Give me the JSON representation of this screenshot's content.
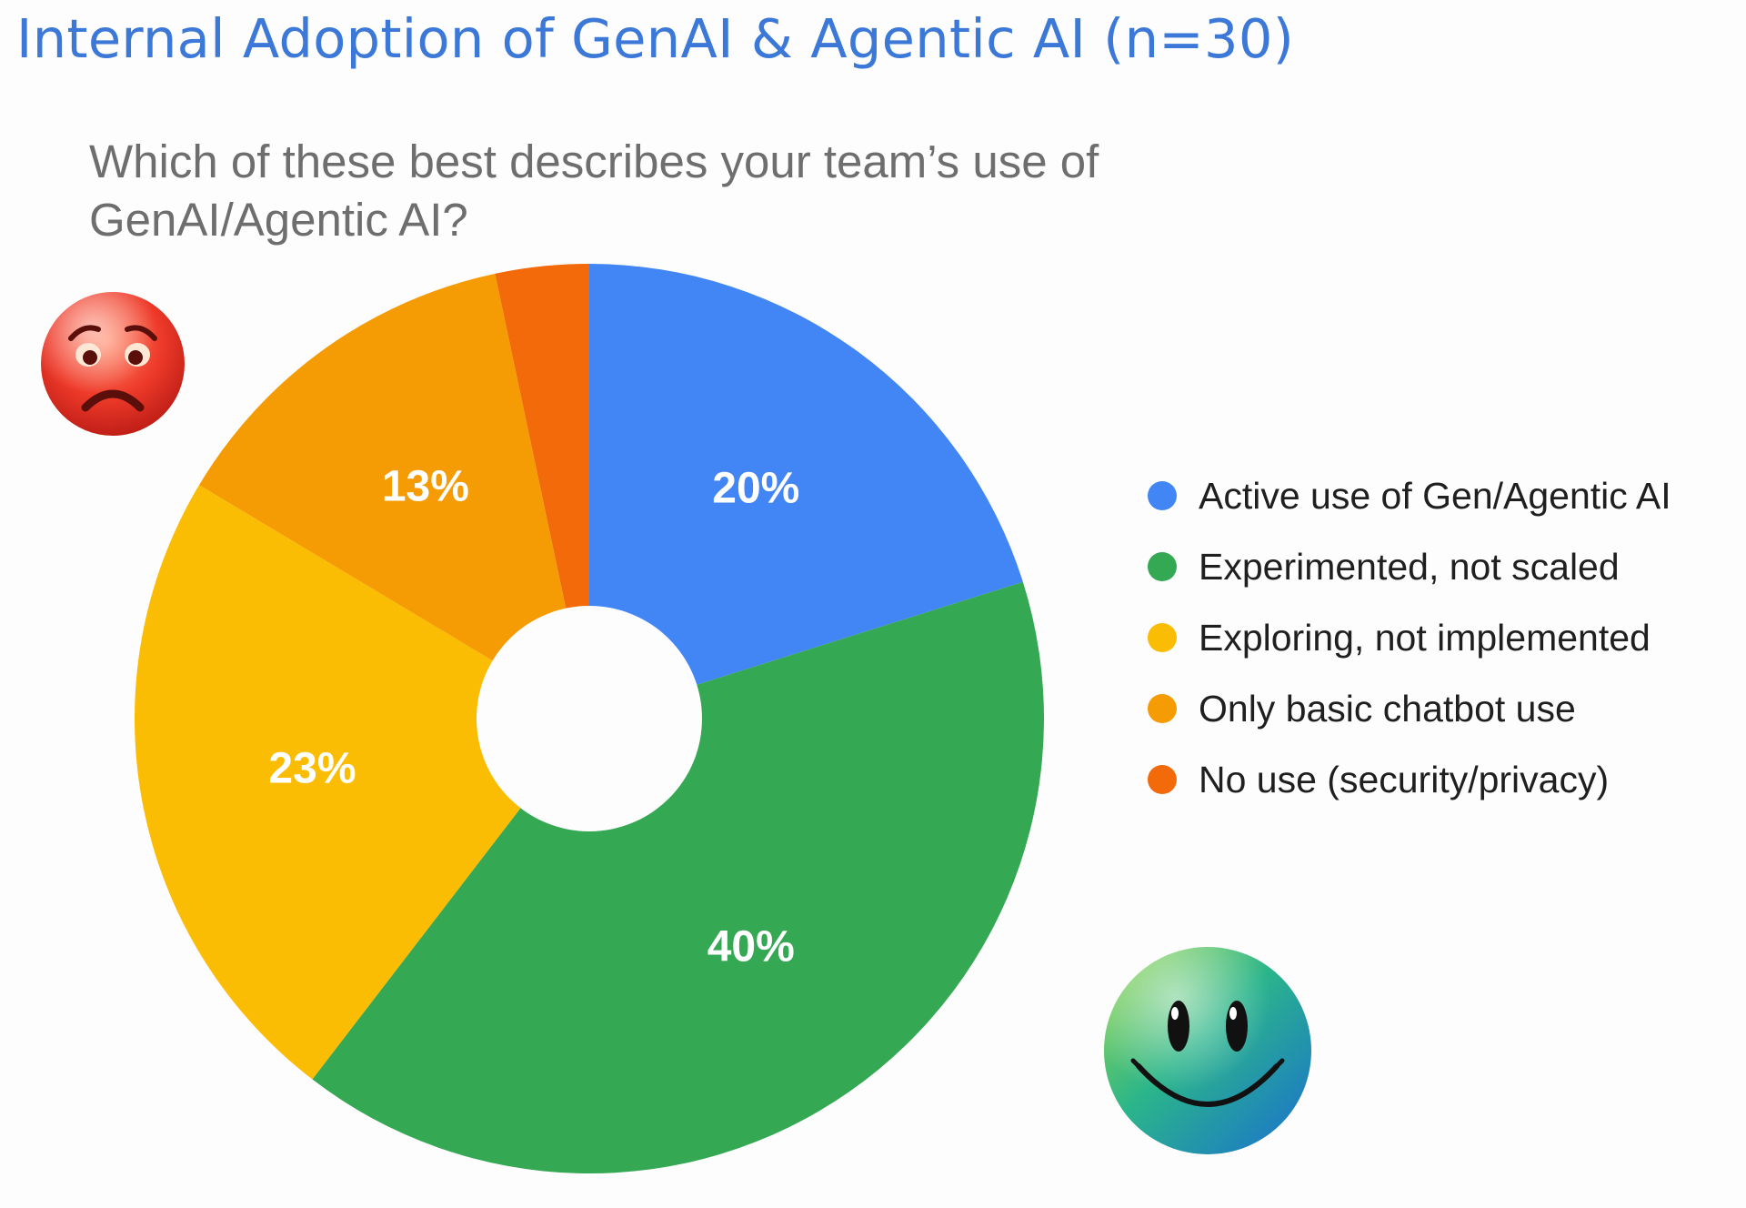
{
  "title": "Internal Adoption of GenAI & Agentic AI (n=30)",
  "subtitle": "Which of these best describes your team’s use of GenAI/Agentic AI?",
  "chart_data": {
    "type": "pie",
    "title": "Internal Adoption of GenAI & Agentic AI (n=30)",
    "subtitle": "Which of these best describes your team’s use of GenAI/Agentic AI?",
    "categories": [
      "Active use of Gen/Agentic AI",
      "Experimented, not scaled",
      "Exploring, not implemented",
      "Only basic chatbot use",
      "No use (security/privacy)"
    ],
    "values": [
      20,
      40,
      23,
      13,
      3.3
    ],
    "value_labels": [
      "20%",
      "40%",
      "23%",
      "13%",
      ""
    ],
    "colors": [
      "#4285f4",
      "#34a853",
      "#fbbc04",
      "#f59c05",
      "#f26a0a"
    ],
    "legend_position": "right",
    "donut_hole": true
  },
  "decorations": {
    "sad_face": "sad-face-emoji",
    "happy_face": "smiley-face-emoji"
  }
}
